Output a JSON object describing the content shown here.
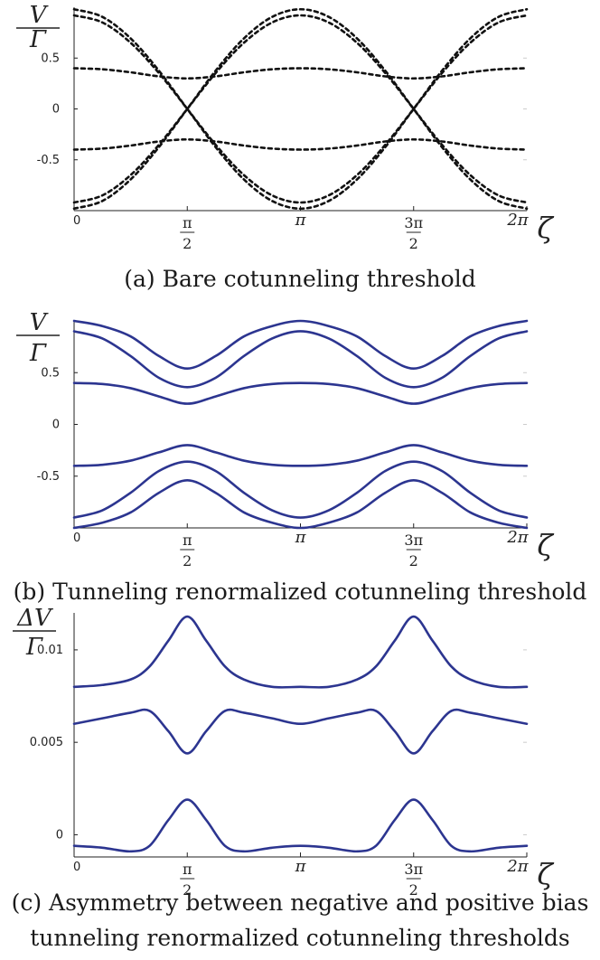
{
  "chart_data": [
    {
      "type": "line",
      "id": "a",
      "caption": "(a) Bare cotunneling threshold",
      "ylabel_top": "V",
      "ylabel_bottom": "Γ",
      "xlabel": "ζ",
      "xlim": [
        0,
        6.2832
      ],
      "ylim": [
        -1.0,
        1.0
      ],
      "yticks": [
        {
          "v": 0.5,
          "label": "0.5"
        },
        {
          "v": 0,
          "label": "0"
        },
        {
          "v": -0.5,
          "label": "-0.5"
        }
      ],
      "xticks": [
        {
          "v": 0,
          "label": "0"
        },
        {
          "v": 1.5708,
          "num": "π",
          "den": "2"
        },
        {
          "v": 3.1416,
          "label": "π"
        },
        {
          "v": 4.7124,
          "num": "3π",
          "den": "2"
        },
        {
          "v": 6.2832,
          "label": "2π"
        }
      ],
      "style": {
        "color": "#111111",
        "dash": true
      },
      "series": [
        {
          "x": [
            0,
            0.3927,
            0.7854,
            1.1781,
            1.5708,
            1.9635,
            2.3562,
            2.7489,
            3.1416,
            3.5343,
            3.927,
            4.3197,
            4.7124,
            5.1051,
            5.4978,
            5.8905,
            6.2832
          ],
          "y": [
            0.98,
            0.905,
            0.693,
            0.375,
            0.0,
            -0.375,
            -0.693,
            -0.905,
            -0.98,
            -0.905,
            -0.693,
            -0.375,
            0.0,
            0.375,
            0.693,
            0.905,
            0.98
          ]
        },
        {
          "x": [
            0,
            0.3927,
            0.7854,
            1.1781,
            1.5708,
            1.9635,
            2.3562,
            2.7489,
            3.1416,
            3.5343,
            3.927,
            4.3197,
            4.7124,
            5.1051,
            5.4978,
            5.8905,
            6.2832
          ],
          "y": [
            0.92,
            0.85,
            0.65,
            0.352,
            0.0,
            -0.352,
            -0.65,
            -0.85,
            -0.92,
            -0.85,
            -0.65,
            -0.352,
            0.0,
            0.352,
            0.65,
            0.85,
            0.92
          ]
        },
        {
          "x": [
            0,
            0.3927,
            0.7854,
            1.1781,
            1.5708,
            1.9635,
            2.3562,
            2.7489,
            3.1416,
            3.5343,
            3.927,
            4.3197,
            4.7124,
            5.1051,
            5.4978,
            5.8905,
            6.2832
          ],
          "y": [
            -0.98,
            -0.905,
            -0.693,
            -0.375,
            0.0,
            0.375,
            0.693,
            0.905,
            0.98,
            0.905,
            0.693,
            0.375,
            0.0,
            -0.375,
            -0.693,
            -0.905,
            -0.98
          ]
        },
        {
          "x": [
            0,
            0.3927,
            0.7854,
            1.1781,
            1.5708,
            1.9635,
            2.3562,
            2.7489,
            3.1416,
            3.5343,
            3.927,
            4.3197,
            4.7124,
            5.1051,
            5.4978,
            5.8905,
            6.2832
          ],
          "y": [
            -0.92,
            -0.85,
            -0.65,
            -0.352,
            0.0,
            0.352,
            0.65,
            0.85,
            0.92,
            0.85,
            0.65,
            0.352,
            0.0,
            -0.352,
            -0.65,
            -0.85,
            -0.92
          ]
        },
        {
          "x": [
            0,
            0.3927,
            0.7854,
            1.1781,
            1.5708,
            1.9635,
            2.3562,
            2.7489,
            3.1416,
            3.5343,
            3.927,
            4.3197,
            4.7124,
            5.1051,
            5.4978,
            5.8905,
            6.2832
          ],
          "y": [
            0.4,
            0.39,
            0.36,
            0.32,
            0.3,
            0.32,
            0.36,
            0.39,
            0.4,
            0.39,
            0.36,
            0.32,
            0.3,
            0.32,
            0.36,
            0.39,
            0.4
          ]
        },
        {
          "x": [
            0,
            0.3927,
            0.7854,
            1.1781,
            1.5708,
            1.9635,
            2.3562,
            2.7489,
            3.1416,
            3.5343,
            3.927,
            4.3197,
            4.7124,
            5.1051,
            5.4978,
            5.8905,
            6.2832
          ],
          "y": [
            -0.4,
            -0.39,
            -0.36,
            -0.32,
            -0.3,
            -0.32,
            -0.36,
            -0.39,
            -0.4,
            -0.39,
            -0.36,
            -0.32,
            -0.3,
            -0.32,
            -0.36,
            -0.39,
            -0.4
          ]
        }
      ]
    },
    {
      "type": "line",
      "id": "b",
      "caption": "(b) Tunneling renormalized cotunneling threshold",
      "ylabel_top": "V",
      "ylabel_bottom": "Γ",
      "xlabel": "ζ",
      "xlim": [
        0,
        6.2832
      ],
      "ylim": [
        -1.0,
        1.0
      ],
      "yticks": [
        {
          "v": 0.5,
          "label": "0.5"
        },
        {
          "v": 0,
          "label": "0"
        },
        {
          "v": -0.5,
          "label": "-0.5"
        }
      ],
      "xticks": [
        {
          "v": 0,
          "label": "0"
        },
        {
          "v": 1.5708,
          "num": "π",
          "den": "2"
        },
        {
          "v": 3.1416,
          "label": "π"
        },
        {
          "v": 4.7124,
          "num": "3π",
          "den": "2"
        },
        {
          "v": 6.2832,
          "label": "2π"
        }
      ],
      "style": {
        "color": "#2c3590",
        "dash": false
      },
      "series": [
        {
          "x": [
            0,
            0.3927,
            0.7854,
            1.1781,
            1.5708,
            1.9635,
            2.3562,
            2.7489,
            3.1416,
            3.5343,
            3.927,
            4.3197,
            4.7124,
            5.1051,
            5.4978,
            5.8905,
            6.2832
          ],
          "y": [
            1.0,
            0.95,
            0.85,
            0.66,
            0.54,
            0.66,
            0.85,
            0.95,
            1.0,
            0.95,
            0.85,
            0.66,
            0.54,
            0.66,
            0.85,
            0.95,
            1.0
          ]
        },
        {
          "x": [
            0,
            0.3927,
            0.7854,
            1.1781,
            1.5708,
            1.9635,
            2.3562,
            2.7489,
            3.1416,
            3.5343,
            3.927,
            4.3197,
            4.7124,
            5.1051,
            5.4978,
            5.8905,
            6.2832
          ],
          "y": [
            0.9,
            0.83,
            0.66,
            0.45,
            0.36,
            0.45,
            0.66,
            0.83,
            0.9,
            0.83,
            0.66,
            0.45,
            0.36,
            0.45,
            0.66,
            0.83,
            0.9
          ]
        },
        {
          "x": [
            0,
            0.3927,
            0.7854,
            1.1781,
            1.5708,
            1.9635,
            2.3562,
            2.7489,
            3.1416,
            3.5343,
            3.927,
            4.3197,
            4.7124,
            5.1051,
            5.4978,
            5.8905,
            6.2832
          ],
          "y": [
            0.4,
            0.39,
            0.35,
            0.27,
            0.2,
            0.27,
            0.35,
            0.39,
            0.4,
            0.39,
            0.35,
            0.27,
            0.2,
            0.27,
            0.35,
            0.39,
            0.4
          ]
        },
        {
          "x": [
            0,
            0.3927,
            0.7854,
            1.1781,
            1.5708,
            1.9635,
            2.3562,
            2.7489,
            3.1416,
            3.5343,
            3.927,
            4.3197,
            4.7124,
            5.1051,
            5.4978,
            5.8905,
            6.2832
          ],
          "y": [
            -0.4,
            -0.39,
            -0.35,
            -0.27,
            -0.2,
            -0.27,
            -0.35,
            -0.39,
            -0.4,
            -0.39,
            -0.35,
            -0.27,
            -0.2,
            -0.27,
            -0.35,
            -0.39,
            -0.4
          ]
        },
        {
          "x": [
            0,
            0.3927,
            0.7854,
            1.1781,
            1.5708,
            1.9635,
            2.3562,
            2.7489,
            3.1416,
            3.5343,
            3.927,
            4.3197,
            4.7124,
            5.1051,
            5.4978,
            5.8905,
            6.2832
          ],
          "y": [
            -0.9,
            -0.83,
            -0.66,
            -0.45,
            -0.36,
            -0.45,
            -0.66,
            -0.83,
            -0.9,
            -0.83,
            -0.66,
            -0.45,
            -0.36,
            -0.45,
            -0.66,
            -0.83,
            -0.9
          ]
        },
        {
          "x": [
            0,
            0.3927,
            0.7854,
            1.1781,
            1.5708,
            1.9635,
            2.3562,
            2.7489,
            3.1416,
            3.5343,
            3.927,
            4.3197,
            4.7124,
            5.1051,
            5.4978,
            5.8905,
            6.2832
          ],
          "y": [
            -1.0,
            -0.95,
            -0.85,
            -0.66,
            -0.54,
            -0.66,
            -0.85,
            -0.95,
            -1.0,
            -0.95,
            -0.85,
            -0.66,
            -0.54,
            -0.66,
            -0.85,
            -0.95,
            -1.0
          ]
        }
      ]
    },
    {
      "type": "line",
      "id": "c",
      "caption": [
        "(c) Asymmetry between negative and positive bias",
        "tunneling renormalized cotunneling thresholds"
      ],
      "ylabel_top": "ΔV",
      "ylabel_bottom": "Γ",
      "xlabel": "ζ",
      "xlim": [
        0,
        6.2832
      ],
      "ylim": [
        -0.0012,
        0.012
      ],
      "yticks": [
        {
          "v": 0.01,
          "label": "0.01"
        },
        {
          "v": 0.005,
          "label": "0.005"
        },
        {
          "v": 0,
          "label": "0"
        }
      ],
      "xticks": [
        {
          "v": 0,
          "label": "0"
        },
        {
          "v": 1.5708,
          "num": "π",
          "den": "2"
        },
        {
          "v": 3.1416,
          "label": "π"
        },
        {
          "v": 4.7124,
          "num": "3π",
          "den": "2"
        },
        {
          "v": 6.2832,
          "label": "2π"
        }
      ],
      "style": {
        "color": "#2c3590",
        "dash": false
      },
      "series": [
        {
          "x": [
            0,
            0.3927,
            0.7854,
            1.0472,
            1.309,
            1.5708,
            1.8326,
            2.0944,
            2.3562,
            2.7489,
            3.1416,
            3.5343,
            3.927,
            4.1888,
            4.4506,
            4.7124,
            4.9742,
            5.236,
            5.4978,
            5.8905,
            6.2832
          ],
          "y": [
            0.008,
            0.0081,
            0.0084,
            0.0091,
            0.0105,
            0.0118,
            0.0105,
            0.0091,
            0.0084,
            0.008,
            0.008,
            0.008,
            0.0084,
            0.0091,
            0.0105,
            0.0118,
            0.0105,
            0.0091,
            0.0084,
            0.008,
            0.008
          ]
        },
        {
          "x": [
            0,
            0.3927,
            0.7854,
            1.0472,
            1.309,
            1.5708,
            1.8326,
            2.0944,
            2.3562,
            2.7489,
            3.1416,
            3.5343,
            3.927,
            4.1888,
            4.4506,
            4.7124,
            4.9742,
            5.236,
            5.4978,
            5.8905,
            6.2832
          ],
          "y": [
            0.006,
            0.0063,
            0.0066,
            0.0067,
            0.0056,
            0.0044,
            0.0056,
            0.0067,
            0.0066,
            0.0063,
            0.006,
            0.0063,
            0.0066,
            0.0067,
            0.0056,
            0.0044,
            0.0056,
            0.0067,
            0.0066,
            0.0063,
            0.006
          ]
        },
        {
          "x": [
            0,
            0.3927,
            0.7854,
            1.0472,
            1.309,
            1.5708,
            1.8326,
            2.0944,
            2.3562,
            2.7489,
            3.1416,
            3.5343,
            3.927,
            4.1888,
            4.4506,
            4.7124,
            4.9742,
            5.236,
            5.4978,
            5.8905,
            6.2832
          ],
          "y": [
            -0.0006,
            -0.0007,
            -0.0009,
            -0.0006,
            0.0008,
            0.0019,
            0.0008,
            -0.0006,
            -0.0009,
            -0.0007,
            -0.0006,
            -0.0007,
            -0.0009,
            -0.0006,
            0.0008,
            0.0019,
            0.0008,
            -0.0006,
            -0.0009,
            -0.0007,
            -0.0006
          ]
        }
      ]
    }
  ]
}
